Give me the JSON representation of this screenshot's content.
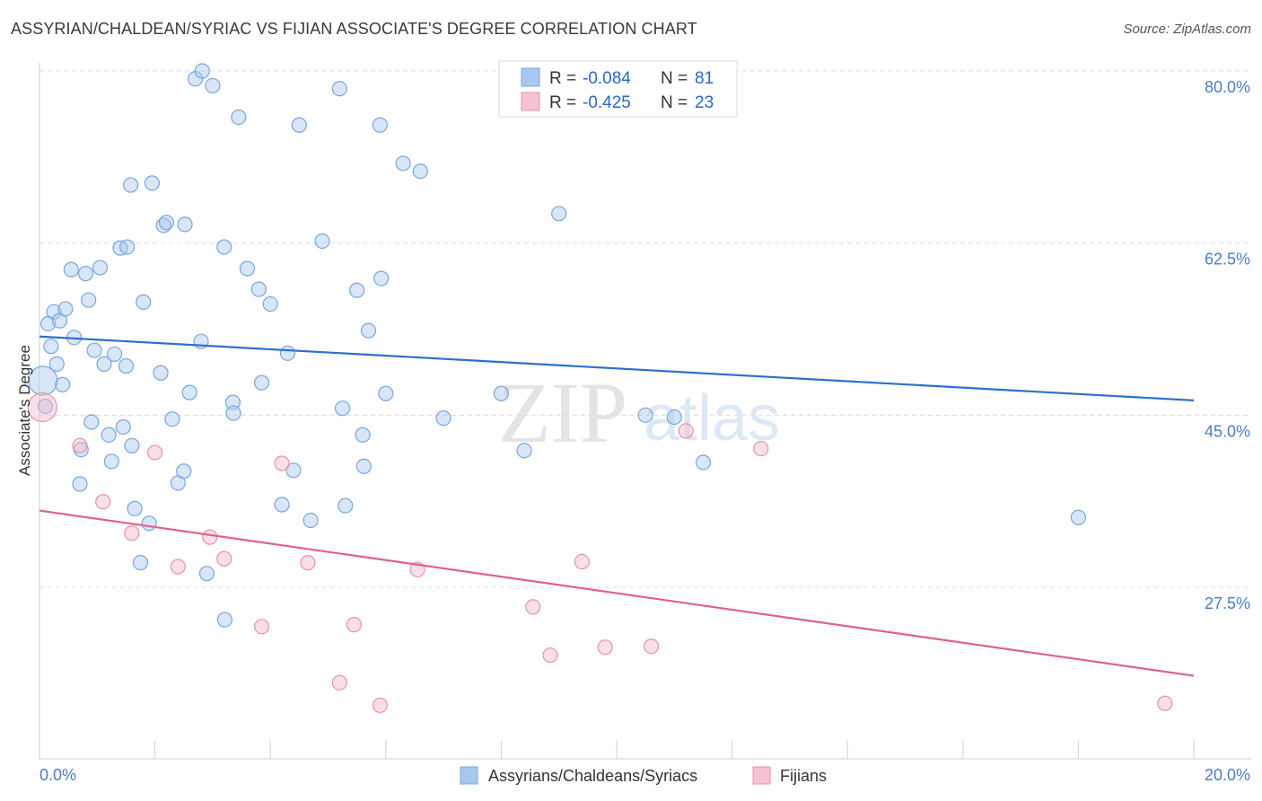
{
  "title": "ASSYRIAN/CHALDEAN/SYRIAC VS FIJIAN ASSOCIATE'S DEGREE CORRELATION CHART",
  "source": "Source: ZipAtlas.com",
  "watermark": {
    "zip": "ZIP",
    "atlas": "atlas"
  },
  "colors": {
    "blue_fill": "#a9c8f0",
    "blue_stroke": "#7aa6df",
    "blue_line": "#2e6fcf",
    "pink_fill": "#f5b7c9",
    "pink_stroke": "#e892ad",
    "pink_line": "#e0608d",
    "grid": "#dcdcdc",
    "tick_text": "#4a7cc7"
  },
  "legend": {
    "rows": [
      {
        "r_label": "R = ",
        "r_value": "-0.084",
        "n_label": "N = ",
        "n_value": "81",
        "series": "blue"
      },
      {
        "r_label": "R = ",
        "r_value": "-0.425",
        "n_label": "N = ",
        "n_value": "23",
        "series": "pink"
      }
    ]
  },
  "chart_data": {
    "type": "scatter",
    "title": "ASSYRIAN/CHALDEAN/SYRIAC VS FIJIAN ASSOCIATE'S DEGREE CORRELATION CHART",
    "xlabel": "",
    "ylabel": "Associate's Degree",
    "xlim": [
      0,
      20
    ],
    "ylim": [
      12,
      82
    ],
    "y_ticks": [
      27.5,
      45.0,
      62.5,
      80.0
    ],
    "y_tick_labels": [
      "27.5%",
      "45.0%",
      "62.5%",
      "80.0%"
    ],
    "x_tick_labels": [
      "0.0%",
      "20.0%"
    ],
    "x_ticks": [
      0,
      20
    ],
    "grid": true,
    "legend_position": "top-center",
    "series": [
      {
        "name": "Assyrians/Chaldeans/Syriacs",
        "color": "blue",
        "trend": {
          "x": [
            0,
            20
          ],
          "y": [
            53.0,
            46.5
          ]
        },
        "points": [
          [
            0.06,
            48.5
          ],
          [
            0.15,
            54.3
          ],
          [
            0.2,
            52.0
          ],
          [
            0.25,
            55.5
          ],
          [
            0.3,
            50.2
          ],
          [
            0.35,
            54.6
          ],
          [
            0.4,
            48.1
          ],
          [
            0.45,
            55.8
          ],
          [
            0.55,
            59.8
          ],
          [
            0.6,
            52.9
          ],
          [
            0.7,
            38.0
          ],
          [
            0.72,
            41.5
          ],
          [
            0.8,
            59.4
          ],
          [
            0.85,
            56.7
          ],
          [
            0.9,
            44.3
          ],
          [
            0.95,
            51.6
          ],
          [
            1.05,
            60.0
          ],
          [
            1.12,
            50.2
          ],
          [
            1.2,
            43.0
          ],
          [
            1.25,
            40.3
          ],
          [
            1.3,
            51.2
          ],
          [
            1.4,
            62.0
          ],
          [
            1.45,
            43.8
          ],
          [
            1.5,
            50.0
          ],
          [
            1.52,
            62.1
          ],
          [
            1.58,
            68.4
          ],
          [
            1.6,
            41.9
          ],
          [
            1.65,
            35.5
          ],
          [
            1.75,
            30.0
          ],
          [
            1.8,
            56.5
          ],
          [
            1.9,
            34.0
          ],
          [
            1.95,
            68.6
          ],
          [
            2.1,
            49.3
          ],
          [
            2.15,
            64.3
          ],
          [
            2.2,
            64.6
          ],
          [
            2.3,
            44.6
          ],
          [
            2.4,
            38.1
          ],
          [
            2.5,
            39.3
          ],
          [
            2.52,
            64.4
          ],
          [
            2.6,
            47.3
          ],
          [
            2.7,
            79.2
          ],
          [
            2.8,
            52.5
          ],
          [
            2.82,
            80.0
          ],
          [
            2.9,
            28.9
          ],
          [
            3.0,
            78.5
          ],
          [
            3.2,
            62.1
          ],
          [
            3.21,
            24.2
          ],
          [
            3.35,
            46.3
          ],
          [
            3.36,
            45.2
          ],
          [
            3.45,
            75.3
          ],
          [
            3.6,
            59.9
          ],
          [
            3.8,
            57.8
          ],
          [
            3.85,
            48.3
          ],
          [
            4.0,
            56.3
          ],
          [
            4.2,
            35.9
          ],
          [
            4.3,
            51.3
          ],
          [
            4.4,
            39.4
          ],
          [
            4.5,
            74.5
          ],
          [
            4.7,
            34.3
          ],
          [
            4.9,
            62.7
          ],
          [
            5.2,
            78.2
          ],
          [
            5.25,
            45.7
          ],
          [
            5.3,
            35.8
          ],
          [
            5.5,
            57.7
          ],
          [
            5.6,
            43.0
          ],
          [
            5.62,
            39.8
          ],
          [
            5.7,
            53.6
          ],
          [
            5.9,
            74.5
          ],
          [
            5.92,
            58.9
          ],
          [
            6.0,
            47.2
          ],
          [
            6.3,
            70.6
          ],
          [
            6.6,
            69.8
          ],
          [
            7.0,
            44.7
          ],
          [
            8.0,
            47.2
          ],
          [
            8.4,
            41.4
          ],
          [
            9.0,
            65.5
          ],
          [
            10.5,
            45.0
          ],
          [
            11.0,
            44.8
          ],
          [
            11.5,
            40.2
          ],
          [
            18.0,
            34.6
          ],
          [
            0.1,
            45.9
          ]
        ]
      },
      {
        "name": "Fijians",
        "color": "pink",
        "trend": {
          "x": [
            0,
            20
          ],
          "y": [
            35.3,
            18.5
          ]
        },
        "points": [
          [
            0.05,
            45.8
          ],
          [
            0.7,
            41.9
          ],
          [
            1.1,
            36.2
          ],
          [
            1.6,
            33.0
          ],
          [
            2.0,
            41.2
          ],
          [
            2.4,
            29.6
          ],
          [
            2.95,
            32.6
          ],
          [
            3.2,
            30.4
          ],
          [
            3.85,
            23.5
          ],
          [
            4.2,
            40.1
          ],
          [
            4.65,
            30.0
          ],
          [
            5.2,
            17.8
          ],
          [
            5.45,
            23.7
          ],
          [
            5.9,
            15.5
          ],
          [
            6.55,
            29.3
          ],
          [
            8.55,
            25.5
          ],
          [
            8.85,
            20.6
          ],
          [
            9.4,
            30.1
          ],
          [
            9.8,
            21.4
          ],
          [
            10.6,
            21.5
          ],
          [
            11.2,
            43.4
          ],
          [
            12.5,
            41.6
          ],
          [
            19.5,
            15.7
          ]
        ]
      }
    ]
  },
  "bottom_legend": [
    {
      "label": "Assyrians/Chaldeans/Syriacs",
      "color": "blue"
    },
    {
      "label": "Fijians",
      "color": "pink"
    }
  ]
}
